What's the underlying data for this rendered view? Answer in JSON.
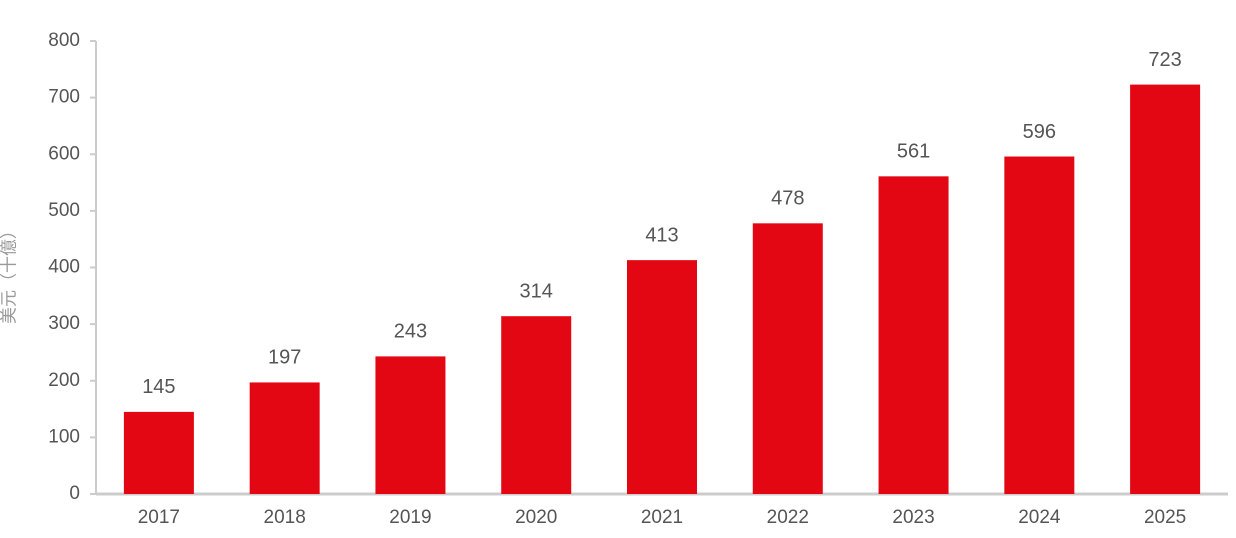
{
  "chart_data": {
    "type": "bar",
    "title": "",
    "xlabel": "",
    "ylabel": "美元（十億）",
    "categories": [
      "2017",
      "2018",
      "2019",
      "2020",
      "2021",
      "2022",
      "2023",
      "2024",
      "2025"
    ],
    "values": [
      145,
      197,
      243,
      314,
      413,
      478,
      561,
      596,
      723
    ],
    "data_labels": [
      "145",
      "197",
      "243",
      "314",
      "413",
      "478",
      "561",
      "596",
      "723"
    ],
    "ylim": [
      0,
      800
    ],
    "yticks": [
      0,
      100,
      200,
      300,
      400,
      500,
      600,
      700,
      800
    ],
    "ytick_labels": [
      "0",
      "100",
      "200",
      "300",
      "400",
      "500",
      "600",
      "700",
      "800"
    ],
    "grid": false,
    "legend": "none",
    "colors": {
      "bar": "#e30613",
      "axis": "#cccccc",
      "text": "#555555",
      "ylabel": "#999999"
    }
  }
}
